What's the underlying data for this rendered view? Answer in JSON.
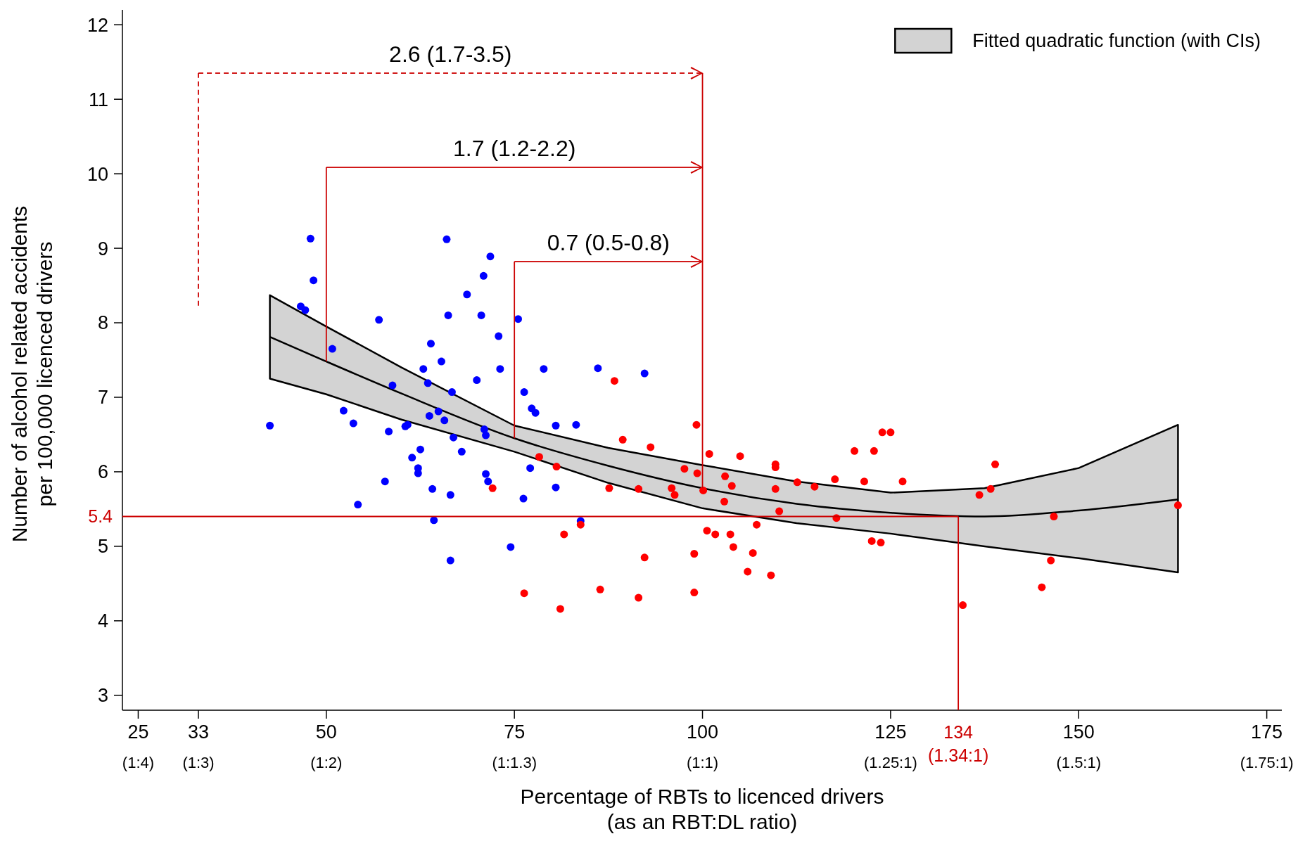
{
  "chart_data": {
    "type": "scatter",
    "xlabel": "Percentage of RBTs to licenced drivers\n(as an RBT:DL ratio)",
    "ylabel": "Number of alcohol related accidents\nper 100,000 licenced drivers",
    "xlim": [
      22.9,
      177
    ],
    "ylim": [
      2.8,
      12.2
    ],
    "xticks": [
      25,
      33,
      50,
      75,
      100,
      125,
      150,
      175
    ],
    "yticks": [
      3,
      4,
      5,
      6,
      7,
      8,
      9,
      10,
      11,
      12
    ],
    "grid": false,
    "legend": "top right",
    "marker": "circle",
    "series": [
      {
        "type": "line",
        "name": "Fitted quadratic function (with CIs)",
        "color": "#000000",
        "marker": "none",
        "x": [
          42.5,
          50,
          60,
          75,
          87.5,
          100,
          112.5,
          125,
          137.5,
          150,
          163.2
        ],
        "values": [
          7.81,
          7.48,
          7.05,
          6.45,
          6.08,
          5.78,
          5.57,
          5.45,
          5.4,
          5.48,
          5.63
        ],
        "lower": [
          7.25,
          7.04,
          6.7,
          6.27,
          5.85,
          5.51,
          5.31,
          5.17,
          5.0,
          4.84,
          4.65
        ],
        "upper": [
          8.37,
          7.95,
          7.4,
          6.62,
          6.32,
          6.09,
          5.87,
          5.72,
          5.78,
          6.05,
          6.63
        ]
      },
      {
        "color": "#0000ff",
        "x": [
          42.5,
          46.6,
          47.2,
          47.9,
          48.3,
          50.8,
          52.3,
          53.6,
          54.2,
          57.0,
          57.8,
          58.3,
          58.8,
          60.5,
          60.8,
          61.4,
          62.2,
          62.2,
          62.5,
          62.9,
          63.5,
          63.7,
          63.9,
          64.1,
          64.3,
          64.9,
          65.3,
          65.7,
          66.0,
          66.2,
          66.5,
          66.5,
          66.7,
          66.9,
          68.0,
          68.7,
          70.0,
          70.6,
          70.9,
          71.0,
          71.2,
          71.2,
          71.5,
          71.8,
          72.9,
          73.1,
          74.5,
          75.5,
          76.2,
          76.3,
          77.1,
          77.3,
          77.8,
          78.9,
          80.5,
          80.5,
          83.2,
          83.8,
          86.1,
          92.3
        ],
        "values": [
          6.62,
          8.22,
          8.17,
          9.13,
          8.57,
          7.65,
          6.82,
          6.65,
          5.56,
          8.04,
          5.87,
          6.54,
          7.16,
          6.61,
          6.63,
          6.19,
          6.05,
          5.98,
          6.3,
          7.38,
          7.19,
          6.75,
          7.72,
          5.77,
          5.35,
          6.81,
          7.48,
          6.69,
          9.12,
          8.1,
          5.69,
          4.81,
          7.07,
          6.46,
          6.27,
          8.38,
          7.23,
          8.1,
          8.63,
          6.57,
          6.49,
          5.97,
          5.87,
          8.89,
          7.82,
          7.38,
          4.99,
          8.05,
          5.64,
          7.07,
          6.05,
          6.85,
          6.79,
          7.38,
          6.62,
          5.79,
          6.63,
          5.34,
          7.39,
          7.32
        ]
      },
      {
        "color": "#ff0000",
        "x": [
          72.1,
          76.3,
          78.3,
          80.6,
          81.1,
          81.6,
          83.8,
          86.4,
          87.6,
          88.3,
          89.4,
          91.5,
          91.5,
          92.3,
          93.1,
          95.9,
          96.3,
          97.6,
          98.9,
          98.9,
          99.2,
          99.3,
          100.1,
          100.6,
          100.9,
          101.7,
          103.0,
          102.9,
          103.7,
          103.9,
          104.1,
          105.0,
          106.0,
          106.7,
          107.2,
          109.1,
          109.7,
          109.7,
          109.7,
          110.2,
          112.6,
          114.9,
          117.6,
          117.8,
          120.2,
          121.5,
          122.5,
          122.8,
          123.7,
          123.9,
          125.0,
          126.6,
          134.6,
          136.8,
          138.3,
          138.9,
          145.1,
          146.3,
          146.7,
          163.2
        ],
        "values": [
          5.78,
          4.37,
          6.2,
          6.07,
          4.16,
          5.16,
          5.29,
          4.42,
          5.78,
          7.22,
          6.43,
          4.31,
          5.77,
          4.85,
          6.33,
          5.78,
          5.69,
          6.04,
          4.38,
          4.9,
          6.63,
          5.98,
          5.75,
          5.21,
          6.24,
          5.16,
          5.94,
          5.6,
          5.16,
          5.81,
          4.99,
          6.21,
          4.66,
          4.91,
          5.29,
          4.61,
          6.1,
          6.06,
          5.77,
          5.47,
          5.86,
          5.8,
          5.9,
          5.38,
          6.28,
          5.87,
          5.07,
          6.28,
          5.05,
          6.53,
          6.53,
          5.87,
          4.21,
          5.69,
          5.77,
          6.1,
          4.45,
          4.81,
          5.4,
          5.55
        ]
      }
    ],
    "ref_lines": [
      {
        "axis": "y",
        "value": 5.4,
        "label": "5.4",
        "color": "#cc0000"
      },
      {
        "axis": "x",
        "value": 134,
        "label": "134\n(1.34:1)",
        "color": "#cc0000"
      },
      {
        "axis": "x",
        "value": 100,
        "color": "#cc0000"
      },
      {
        "axis": "x",
        "value": 33,
        "color": "#cc0000",
        "line_style": "dashed"
      },
      {
        "axis": "x",
        "value": 50,
        "color": "#cc0000"
      },
      {
        "axis": "x",
        "value": 75,
        "color": "#cc0000"
      }
    ],
    "annotations": [
      "2.6 (1.7-3.5)",
      "1.7 (1.2-2.2)",
      "0.7 (0.5-0.8)",
      "(1:4)",
      "(1:3)",
      "(1:2)",
      "(1:1.3)",
      "(1:1)",
      "(1.25:1)",
      "(1.5:1)",
      "(1.75:1)"
    ]
  }
}
